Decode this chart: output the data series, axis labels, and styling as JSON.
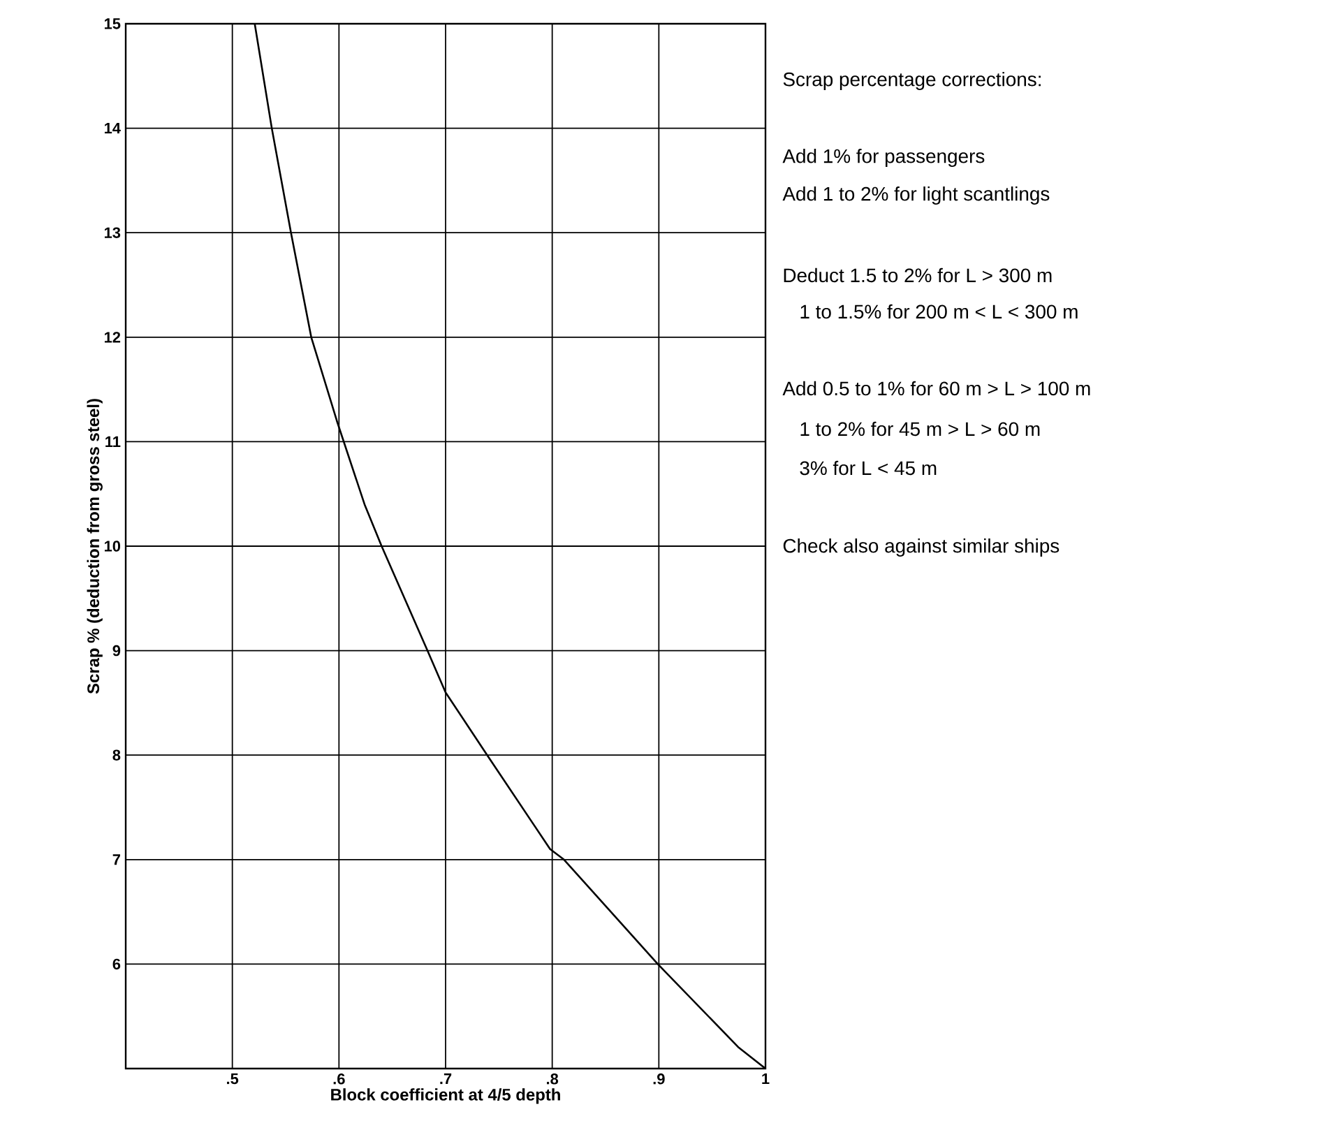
{
  "chart_data": {
    "type": "line",
    "xlabel": "Block coefficient at 4/5 depth",
    "ylabel": "Scrap % (deduction from gross steel)",
    "xlim": [
      0.4,
      1.0
    ],
    "ylim": [
      5,
      15
    ],
    "xticks": [
      {
        "value": 0.5,
        "label": ".5"
      },
      {
        "value": 0.6,
        "label": ".6"
      },
      {
        "value": 0.7,
        "label": ".7"
      },
      {
        "value": 0.8,
        "label": ".8"
      },
      {
        "value": 0.9,
        "label": ".9"
      },
      1
    ],
    "yticks": [
      6,
      7,
      8,
      9,
      10,
      11,
      12,
      13,
      14,
      15
    ],
    "grid": true,
    "marker": "none",
    "line_style": "solid",
    "series": [
      {
        "color": "#000000",
        "x": [
          0.521,
          0.537,
          0.555,
          0.574,
          0.598,
          0.624,
          0.64,
          0.683,
          0.7,
          0.739,
          0.798,
          0.811,
          0.899,
          0.975,
          1.0
        ],
        "values": [
          15,
          14.0,
          13.0,
          12.0,
          11.2,
          10.4,
          10.0,
          9.0,
          8.6,
          8.0,
          7.1,
          7.0,
          6.0,
          5.2,
          5.0
        ]
      }
    ],
    "annotations": [
      "Scrap percentage corrections:",
      "Add 1% for passengers",
      "Add 1 to 2% for light scantlings",
      "Deduct 1.5 to 2% for L > 300 m",
      "1 to 1.5% for 200 m < L < 300 m",
      "Add 0.5 to 1% for 60 m > L > 100 m",
      "1 to 2% for 45 m > L > 60 m",
      "3% for L < 45 m",
      "Check also against similar ships"
    ]
  }
}
